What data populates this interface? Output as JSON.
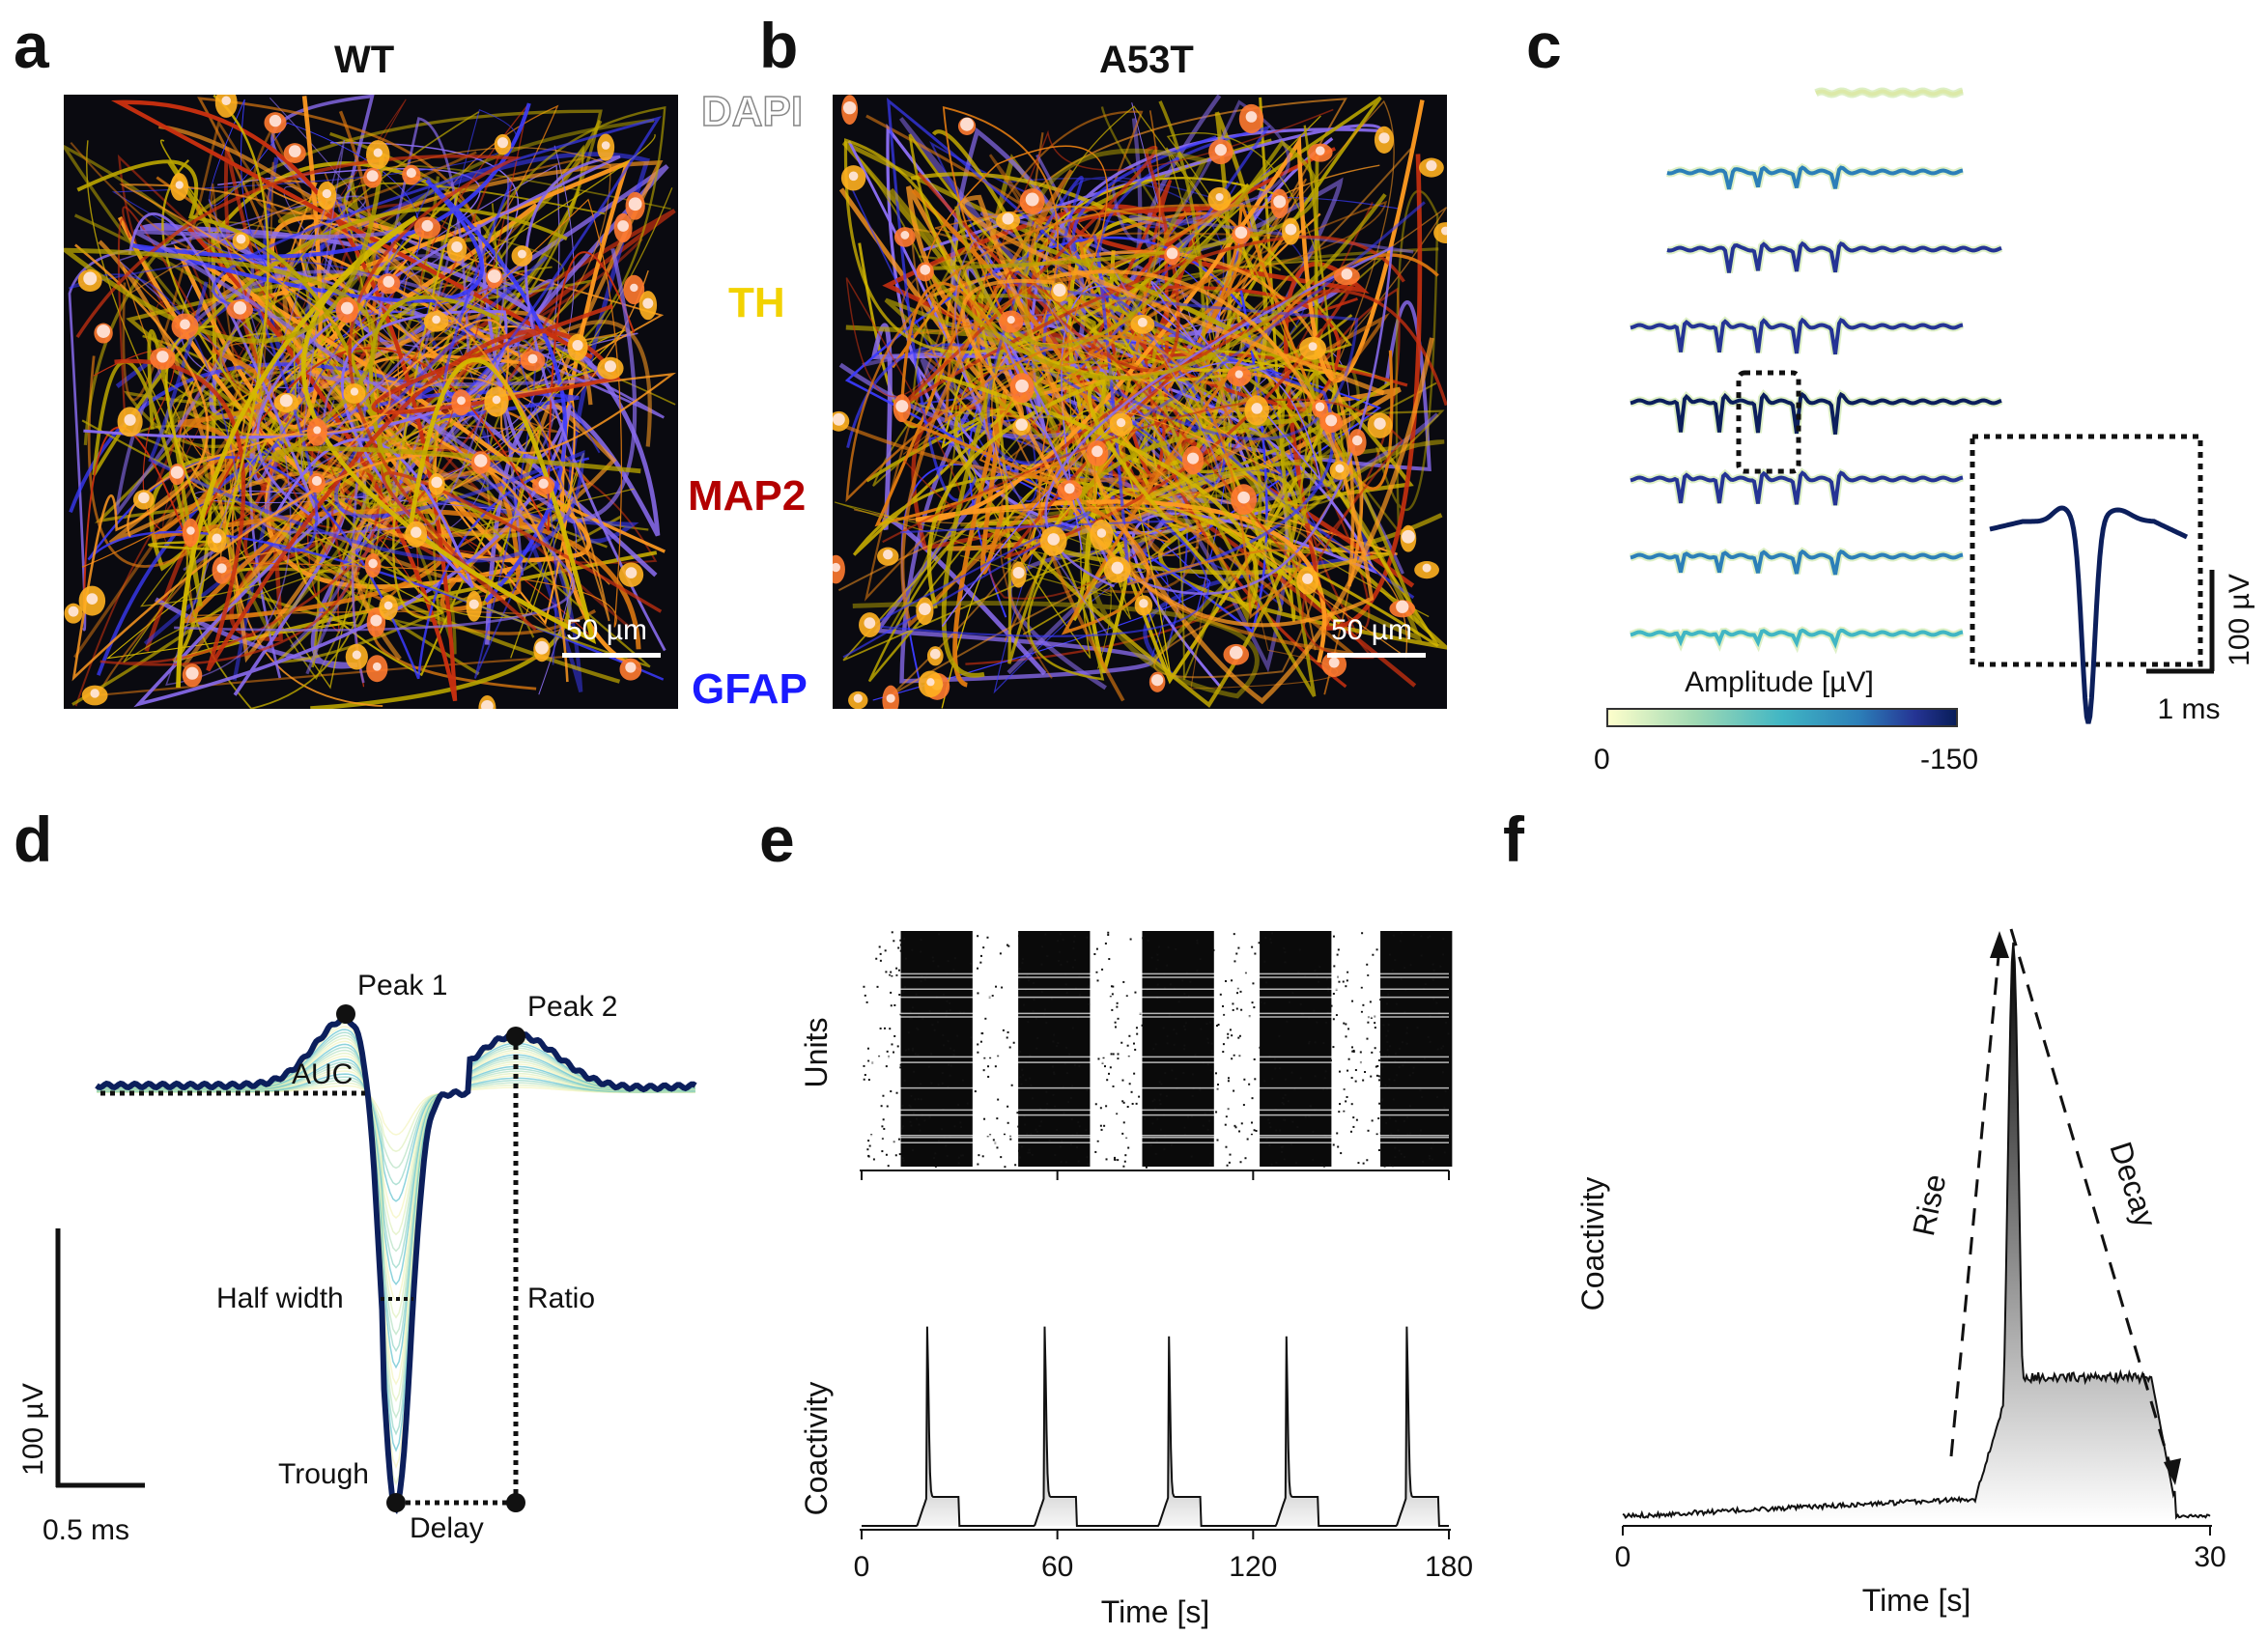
{
  "panels": {
    "a": {
      "letter": "a",
      "title": "WT",
      "scalebar": "50 µm"
    },
    "b": {
      "letter": "b",
      "title": "A53T",
      "scalebar": "50 µm"
    },
    "c": {
      "letter": "c",
      "colorbar_label": "Amplitude [µV]",
      "colorbar_min": "0",
      "colorbar_max": "-150",
      "scale_y": "100 µV",
      "scale_x": "1 ms"
    },
    "d": {
      "letter": "d",
      "labels": {
        "peak1": "Peak 1",
        "peak2": "Peak 2",
        "auc": "AUC",
        "half_width": "Half width",
        "ratio": "Ratio",
        "trough": "Trough",
        "delay": "Delay"
      },
      "scale_y": "100 µV",
      "scale_x": "0.5 ms"
    },
    "e": {
      "letter": "e",
      "ylabel_top": "Units",
      "ylabel_bottom": "Coactivity",
      "xlabel": "Time [s]"
    },
    "f": {
      "letter": "f",
      "ylabel": "Coactivity",
      "xlabel": "Time [s]",
      "rise": "Rise",
      "decay": "Decay"
    }
  },
  "stains": [
    {
      "label": "DAPI",
      "color": "#ffffff",
      "stroke": "#888888"
    },
    {
      "label": "TH",
      "color": "#f2d200"
    },
    {
      "label": "MAP2",
      "color": "#b30000"
    },
    {
      "label": "GFAP",
      "color": "#1a1aff"
    }
  ],
  "colors": {
    "trace_dark": "#0c1f5c",
    "colormap": [
      "#ffffcc",
      "#a1dab4",
      "#41b6c4",
      "#2c7fb8",
      "#253494",
      "#081d58"
    ]
  },
  "chart_data": [
    {
      "type": "line",
      "id": "e-coactivity",
      "x_ticks": [
        "0",
        "60",
        "120",
        "180"
      ],
      "xlim": [
        0,
        180
      ],
      "burst_times": [
        20,
        56,
        94,
        130,
        167
      ]
    },
    {
      "type": "area",
      "id": "f-burst",
      "x_ticks": [
        "0",
        "30"
      ],
      "xlim": [
        0,
        30
      ]
    }
  ]
}
